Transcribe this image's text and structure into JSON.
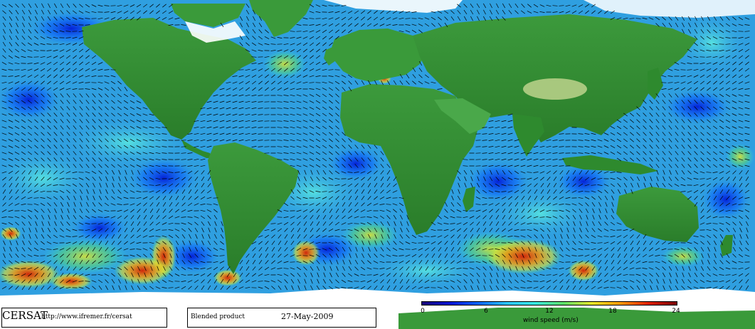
{
  "logo": "CERSAT",
  "url": "http://www.ifremer.fr/cersat",
  "product": "Blended product",
  "date": "27-May-2009",
  "colorbar": {
    "title": "wind speed (m/s)",
    "ticks": [
      "0",
      "6",
      "12",
      "18",
      "24"
    ],
    "min": 0,
    "max": 24,
    "colors": [
      "#1a007a",
      "#0014d6",
      "#0a66ff",
      "#2cc6ff",
      "#38e8e0",
      "#5ee06a",
      "#e6e62a",
      "#ff9a00",
      "#e02000",
      "#7a0000"
    ]
  },
  "palette": {
    "land": "#2e8a2e",
    "land_light": "#9ec87a",
    "ice": "#ffffff",
    "ocean_base": "#2f9fe0",
    "arrow": "#000000"
  }
}
